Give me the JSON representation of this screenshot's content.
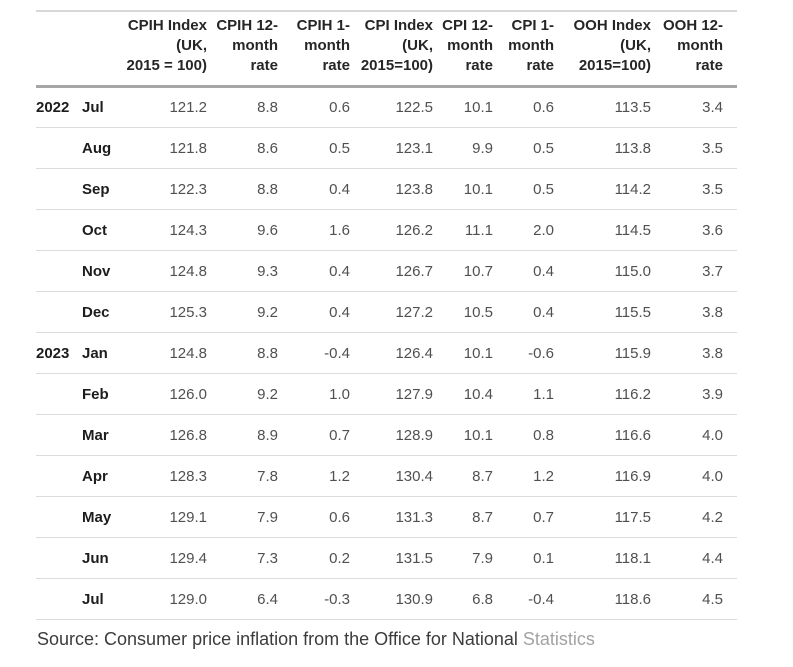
{
  "chart_data": {
    "type": "table",
    "columns": [
      "CPIH Index\n(UK,\n2015 = 100)",
      "CPIH 12-\nmonth\nrate",
      "CPIH 1-\nmonth\nrate",
      "CPI Index\n(UK,\n2015=100)",
      "CPI 12-\nmonth\nrate",
      "CPI 1-\nmonth\nrate",
      "OOH Index\n(UK,\n2015=100)",
      "OOH 12-\nmonth\nrate"
    ],
    "rows": [
      {
        "year": "2022",
        "month": "Jul",
        "values": [
          "121.2",
          "8.8",
          "0.6",
          "122.5",
          "10.1",
          "0.6",
          "113.5",
          "3.4"
        ]
      },
      {
        "year": "",
        "month": "Aug",
        "values": [
          "121.8",
          "8.6",
          "0.5",
          "123.1",
          "9.9",
          "0.5",
          "113.8",
          "3.5"
        ]
      },
      {
        "year": "",
        "month": "Sep",
        "values": [
          "122.3",
          "8.8",
          "0.4",
          "123.8",
          "10.1",
          "0.5",
          "114.2",
          "3.5"
        ]
      },
      {
        "year": "",
        "month": "Oct",
        "values": [
          "124.3",
          "9.6",
          "1.6",
          "126.2",
          "11.1",
          "2.0",
          "114.5",
          "3.6"
        ]
      },
      {
        "year": "",
        "month": "Nov",
        "values": [
          "124.8",
          "9.3",
          "0.4",
          "126.7",
          "10.7",
          "0.4",
          "115.0",
          "3.7"
        ]
      },
      {
        "year": "",
        "month": "Dec",
        "values": [
          "125.3",
          "9.2",
          "0.4",
          "127.2",
          "10.5",
          "0.4",
          "115.5",
          "3.8"
        ]
      },
      {
        "year": "2023",
        "month": "Jan",
        "values": [
          "124.8",
          "8.8",
          "-0.4",
          "126.4",
          "10.1",
          "-0.6",
          "115.9",
          "3.8"
        ]
      },
      {
        "year": "",
        "month": "Feb",
        "values": [
          "126.0",
          "9.2",
          "1.0",
          "127.9",
          "10.4",
          "1.1",
          "116.2",
          "3.9"
        ]
      },
      {
        "year": "",
        "month": "Mar",
        "values": [
          "126.8",
          "8.9",
          "0.7",
          "128.9",
          "10.1",
          "0.8",
          "116.6",
          "4.0"
        ]
      },
      {
        "year": "",
        "month": "Apr",
        "values": [
          "128.3",
          "7.8",
          "1.2",
          "130.4",
          "8.7",
          "1.2",
          "116.9",
          "4.0"
        ]
      },
      {
        "year": "",
        "month": "May",
        "values": [
          "129.1",
          "7.9",
          "0.6",
          "131.3",
          "8.7",
          "0.7",
          "117.5",
          "4.2"
        ]
      },
      {
        "year": "",
        "month": "Jun",
        "values": [
          "129.4",
          "7.3",
          "0.2",
          "131.5",
          "7.9",
          "0.1",
          "118.1",
          "4.4"
        ]
      },
      {
        "year": "",
        "month": "Jul",
        "values": [
          "129.0",
          "6.4",
          "-0.3",
          "130.9",
          "6.8",
          "-0.4",
          "118.6",
          "4.5"
        ]
      }
    ]
  },
  "source_note": {
    "text": "Source: Consumer price inflation from the Office for National ",
    "faded_text": "Statistics"
  },
  "colors": {
    "background": "#ffffff",
    "header_text": "#262626",
    "value_text": "#505050",
    "row_label_text": "#1d1d1d",
    "border_top": "#d8d8d8",
    "border_header": "#a6a6a6",
    "border_row": "#dcdcdc",
    "source_text": "#3c3c3c",
    "source_faded": "#a3a3a3"
  }
}
